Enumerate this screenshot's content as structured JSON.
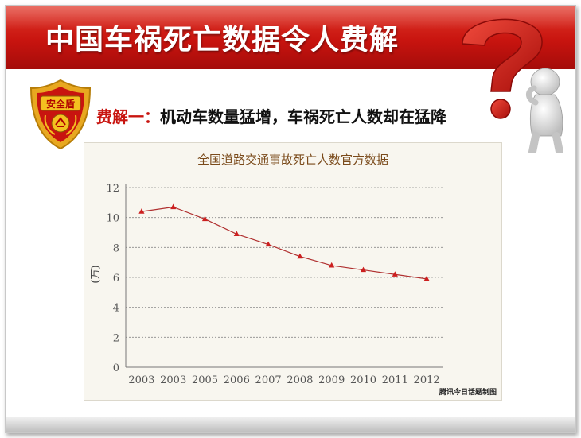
{
  "slide": {
    "title": "中国车祸死亡数据令人费解",
    "badge_text": "安全盾",
    "subtitle_lead": "费解一：",
    "subtitle_rest": "机动车数量猛增，车祸死亡人数却在猛降",
    "credit": "腾讯今日话题制图"
  },
  "colors": {
    "banner": "#c8140f",
    "series_line": "#b03030",
    "marker": "#cc1f1f",
    "badge_gold": "#e8a820",
    "badge_red": "#c8140f"
  },
  "chart_data": {
    "type": "line",
    "title": "全国道路交通事故死亡人数官方数据",
    "ylabel": "(万)",
    "xlabel": "",
    "categories": [
      "2003",
      "2003",
      "2005",
      "2006",
      "2007",
      "2008",
      "2009",
      "2010",
      "2011",
      "2012"
    ],
    "series": [
      {
        "values": [
          10.4,
          10.7,
          9.9,
          8.9,
          8.2,
          7.4,
          6.8,
          6.5,
          6.2,
          5.9
        ]
      }
    ],
    "ylim": [
      0,
      12
    ],
    "yticks": [
      0,
      2,
      4,
      6,
      8,
      10,
      12
    ],
    "grid": true,
    "legend": "none"
  }
}
